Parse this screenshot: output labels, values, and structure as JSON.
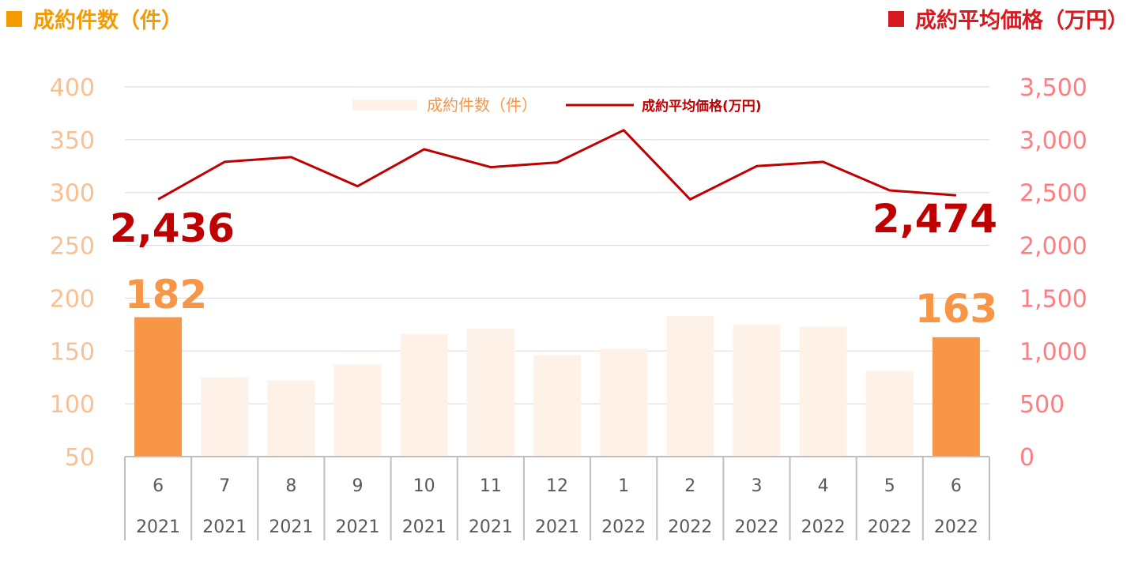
{
  "header": {
    "left_title": "成約件数（件）",
    "right_title": "成約平均価格（万円）"
  },
  "colors": {
    "bar_highlight": "#f79646",
    "bar_normal": "#fdf1e8",
    "line": "#c00000",
    "left_axis": "#fac090",
    "right_axis": "#ff7c80",
    "left_header": "#f59a00",
    "right_header": "#d71920",
    "grid": "#d9d9d9",
    "category_text": "#595959"
  },
  "chart_data": {
    "type": "bar",
    "categories": [
      {
        "month": "6",
        "year": "2021"
      },
      {
        "month": "7",
        "year": "2021"
      },
      {
        "month": "8",
        "year": "2021"
      },
      {
        "month": "9",
        "year": "2021"
      },
      {
        "month": "10",
        "year": "2021"
      },
      {
        "month": "11",
        "year": "2021"
      },
      {
        "month": "12",
        "year": "2021"
      },
      {
        "month": "1",
        "year": "2022"
      },
      {
        "month": "2",
        "year": "2022"
      },
      {
        "month": "3",
        "year": "2022"
      },
      {
        "month": "4",
        "year": "2022"
      },
      {
        "month": "5",
        "year": "2022"
      },
      {
        "month": "6",
        "year": "2022"
      }
    ],
    "series": [
      {
        "name": "成約件数（件）",
        "type": "bar",
        "axis": "left",
        "values": [
          182,
          125,
          122,
          137,
          166,
          171,
          146,
          152,
          183,
          175,
          173,
          131,
          163
        ]
      },
      {
        "name": "成約平均価格(万円)",
        "type": "line",
        "axis": "right",
        "values": [
          2436,
          2790,
          2835,
          2560,
          2910,
          2740,
          2785,
          3090,
          2435,
          2750,
          2790,
          2520,
          2474
        ]
      }
    ],
    "highlight_indices": [
      0,
      12
    ],
    "left_axis": {
      "min": 50,
      "max": 400,
      "ticks": [
        "50",
        "100",
        "150",
        "200",
        "250",
        "300",
        "350",
        "400"
      ]
    },
    "right_axis": {
      "min": 0,
      "max": 3500,
      "ticks": [
        "0",
        "500",
        "1,000",
        "1,500",
        "2,000",
        "2,500",
        "3,000",
        "3,500"
      ]
    },
    "annotations": [
      {
        "text": "182",
        "series": 0,
        "index": 0
      },
      {
        "text": "163",
        "series": 0,
        "index": 12
      },
      {
        "text": "2,436",
        "series": 1,
        "index": 0
      },
      {
        "text": "2,474",
        "series": 1,
        "index": 12
      }
    ],
    "legend": {
      "position": "top-center"
    },
    "grid": true
  }
}
